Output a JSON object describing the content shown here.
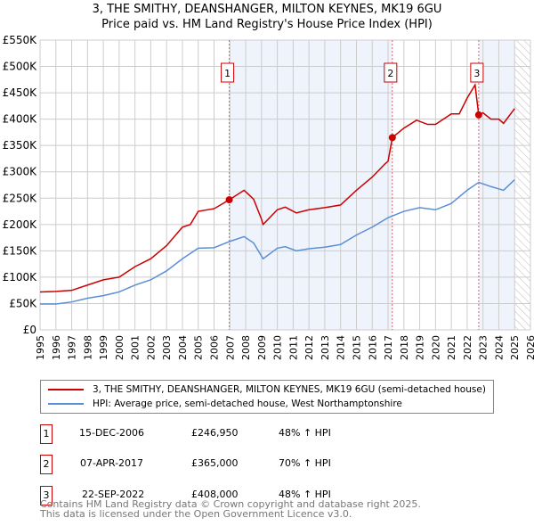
{
  "chart_data": {
    "type": "line",
    "title": "3, THE SMITHY, DEANSHANGER, MILTON KEYNES, MK19 6GU",
    "subtitle": "Price paid vs. HM Land Registry's House Price Index (HPI)",
    "xlim": [
      1995,
      2026
    ],
    "ylim": [
      0,
      550000
    ],
    "y_ticks": [
      {
        "v": 0,
        "label": "£0"
      },
      {
        "v": 50000,
        "label": "£50K"
      },
      {
        "v": 100000,
        "label": "£100K"
      },
      {
        "v": 150000,
        "label": "£150K"
      },
      {
        "v": 200000,
        "label": "£200K"
      },
      {
        "v": 250000,
        "label": "£250K"
      },
      {
        "v": 300000,
        "label": "£300K"
      },
      {
        "v": 350000,
        "label": "£350K"
      },
      {
        "v": 400000,
        "label": "£400K"
      },
      {
        "v": 450000,
        "label": "£450K"
      },
      {
        "v": 500000,
        "label": "£500K"
      },
      {
        "v": 550000,
        "label": "£550K"
      }
    ],
    "x_ticks": [
      "1995",
      "1996",
      "1997",
      "1998",
      "1999",
      "2000",
      "2001",
      "2002",
      "2003",
      "2004",
      "2005",
      "2006",
      "2007",
      "2008",
      "2009",
      "2010",
      "2011",
      "2012",
      "2013",
      "2014",
      "2015",
      "2016",
      "2017",
      "2018",
      "2019",
      "2020",
      "2021",
      "2022",
      "2023",
      "2024",
      "2025",
      "2026"
    ],
    "grid": true,
    "series": [
      {
        "name": "3, THE SMITHY, DEANSHANGER, MILTON KEYNES, MK19 6GU (semi-detached house)",
        "color": "#cc0000",
        "points": [
          [
            1995,
            72000
          ],
          [
            1996,
            73000
          ],
          [
            1997,
            75000
          ],
          [
            1998,
            85000
          ],
          [
            1999,
            95000
          ],
          [
            2000,
            100000
          ],
          [
            2001,
            120000
          ],
          [
            2002,
            135000
          ],
          [
            2003,
            160000
          ],
          [
            2004,
            195000
          ],
          [
            2004.5,
            200000
          ],
          [
            2005,
            225000
          ],
          [
            2006,
            230000
          ],
          [
            2006.96,
            246950
          ],
          [
            2007.9,
            265000
          ],
          [
            2008.5,
            248000
          ],
          [
            2009.0,
            210000
          ],
          [
            2009.1,
            200000
          ],
          [
            2010,
            228000
          ],
          [
            2010.5,
            233000
          ],
          [
            2011.2,
            222000
          ],
          [
            2012,
            228000
          ],
          [
            2013,
            232000
          ],
          [
            2014,
            237000
          ],
          [
            2015,
            265000
          ],
          [
            2016,
            290000
          ],
          [
            2016.8,
            315000
          ],
          [
            2017.0,
            320000
          ],
          [
            2017.27,
            365000
          ],
          [
            2018,
            383000
          ],
          [
            2018.8,
            398000
          ],
          [
            2019.5,
            390000
          ],
          [
            2020,
            390000
          ],
          [
            2021,
            410000
          ],
          [
            2021.5,
            410000
          ],
          [
            2022,
            440000
          ],
          [
            2022.5,
            465000
          ],
          [
            2022.73,
            408000
          ],
          [
            2023,
            412000
          ],
          [
            2023.5,
            400000
          ],
          [
            2024,
            400000
          ],
          [
            2024.3,
            392000
          ],
          [
            2025,
            420000
          ]
        ]
      },
      {
        "name": "HPI: Average price, semi-detached house, West Northamptonshire",
        "color": "#5b8fd4",
        "points": [
          [
            1995,
            49000
          ],
          [
            1996,
            49000
          ],
          [
            1997,
            53000
          ],
          [
            1998,
            60000
          ],
          [
            1999,
            65000
          ],
          [
            2000,
            72000
          ],
          [
            2001,
            85000
          ],
          [
            2002,
            95000
          ],
          [
            2003,
            112000
          ],
          [
            2004,
            135000
          ],
          [
            2005,
            155000
          ],
          [
            2006,
            156000
          ],
          [
            2007,
            168000
          ],
          [
            2007.9,
            177000
          ],
          [
            2008.5,
            165000
          ],
          [
            2009.1,
            135000
          ],
          [
            2010,
            155000
          ],
          [
            2010.5,
            158000
          ],
          [
            2011.2,
            150000
          ],
          [
            2012,
            154000
          ],
          [
            2013,
            157000
          ],
          [
            2014,
            162000
          ],
          [
            2015,
            180000
          ],
          [
            2016,
            195000
          ],
          [
            2017,
            213000
          ],
          [
            2018,
            225000
          ],
          [
            2019,
            232000
          ],
          [
            2020,
            228000
          ],
          [
            2021,
            240000
          ],
          [
            2022,
            265000
          ],
          [
            2022.73,
            280000
          ],
          [
            2023.5,
            272000
          ],
          [
            2024.3,
            265000
          ],
          [
            2025,
            285000
          ]
        ]
      }
    ],
    "sales": [
      {
        "n": "1",
        "x": 2006.96,
        "y": 246950,
        "date": "15-DEC-2006",
        "price": "£246,950",
        "hpi": "48% ↑ HPI"
      },
      {
        "n": "2",
        "x": 2017.27,
        "y": 365000,
        "date": "07-APR-2017",
        "price": "£365,000",
        "hpi": "70% ↑ HPI"
      },
      {
        "n": "3",
        "x": 2022.73,
        "y": 408000,
        "date": "22-SEP-2022",
        "price": "£408,000",
        "hpi": "48% ↑ HPI"
      }
    ],
    "shaded": [
      [
        2006.96,
        2017.27
      ],
      [
        2022.73,
        2025.0
      ]
    ],
    "hatched_from": 2025.0,
    "legend_position": "below"
  },
  "footer": {
    "line1": "Contains HM Land Registry data © Crown copyright and database right 2025.",
    "line2": "This data is licensed under the Open Government Licence v3.0."
  }
}
